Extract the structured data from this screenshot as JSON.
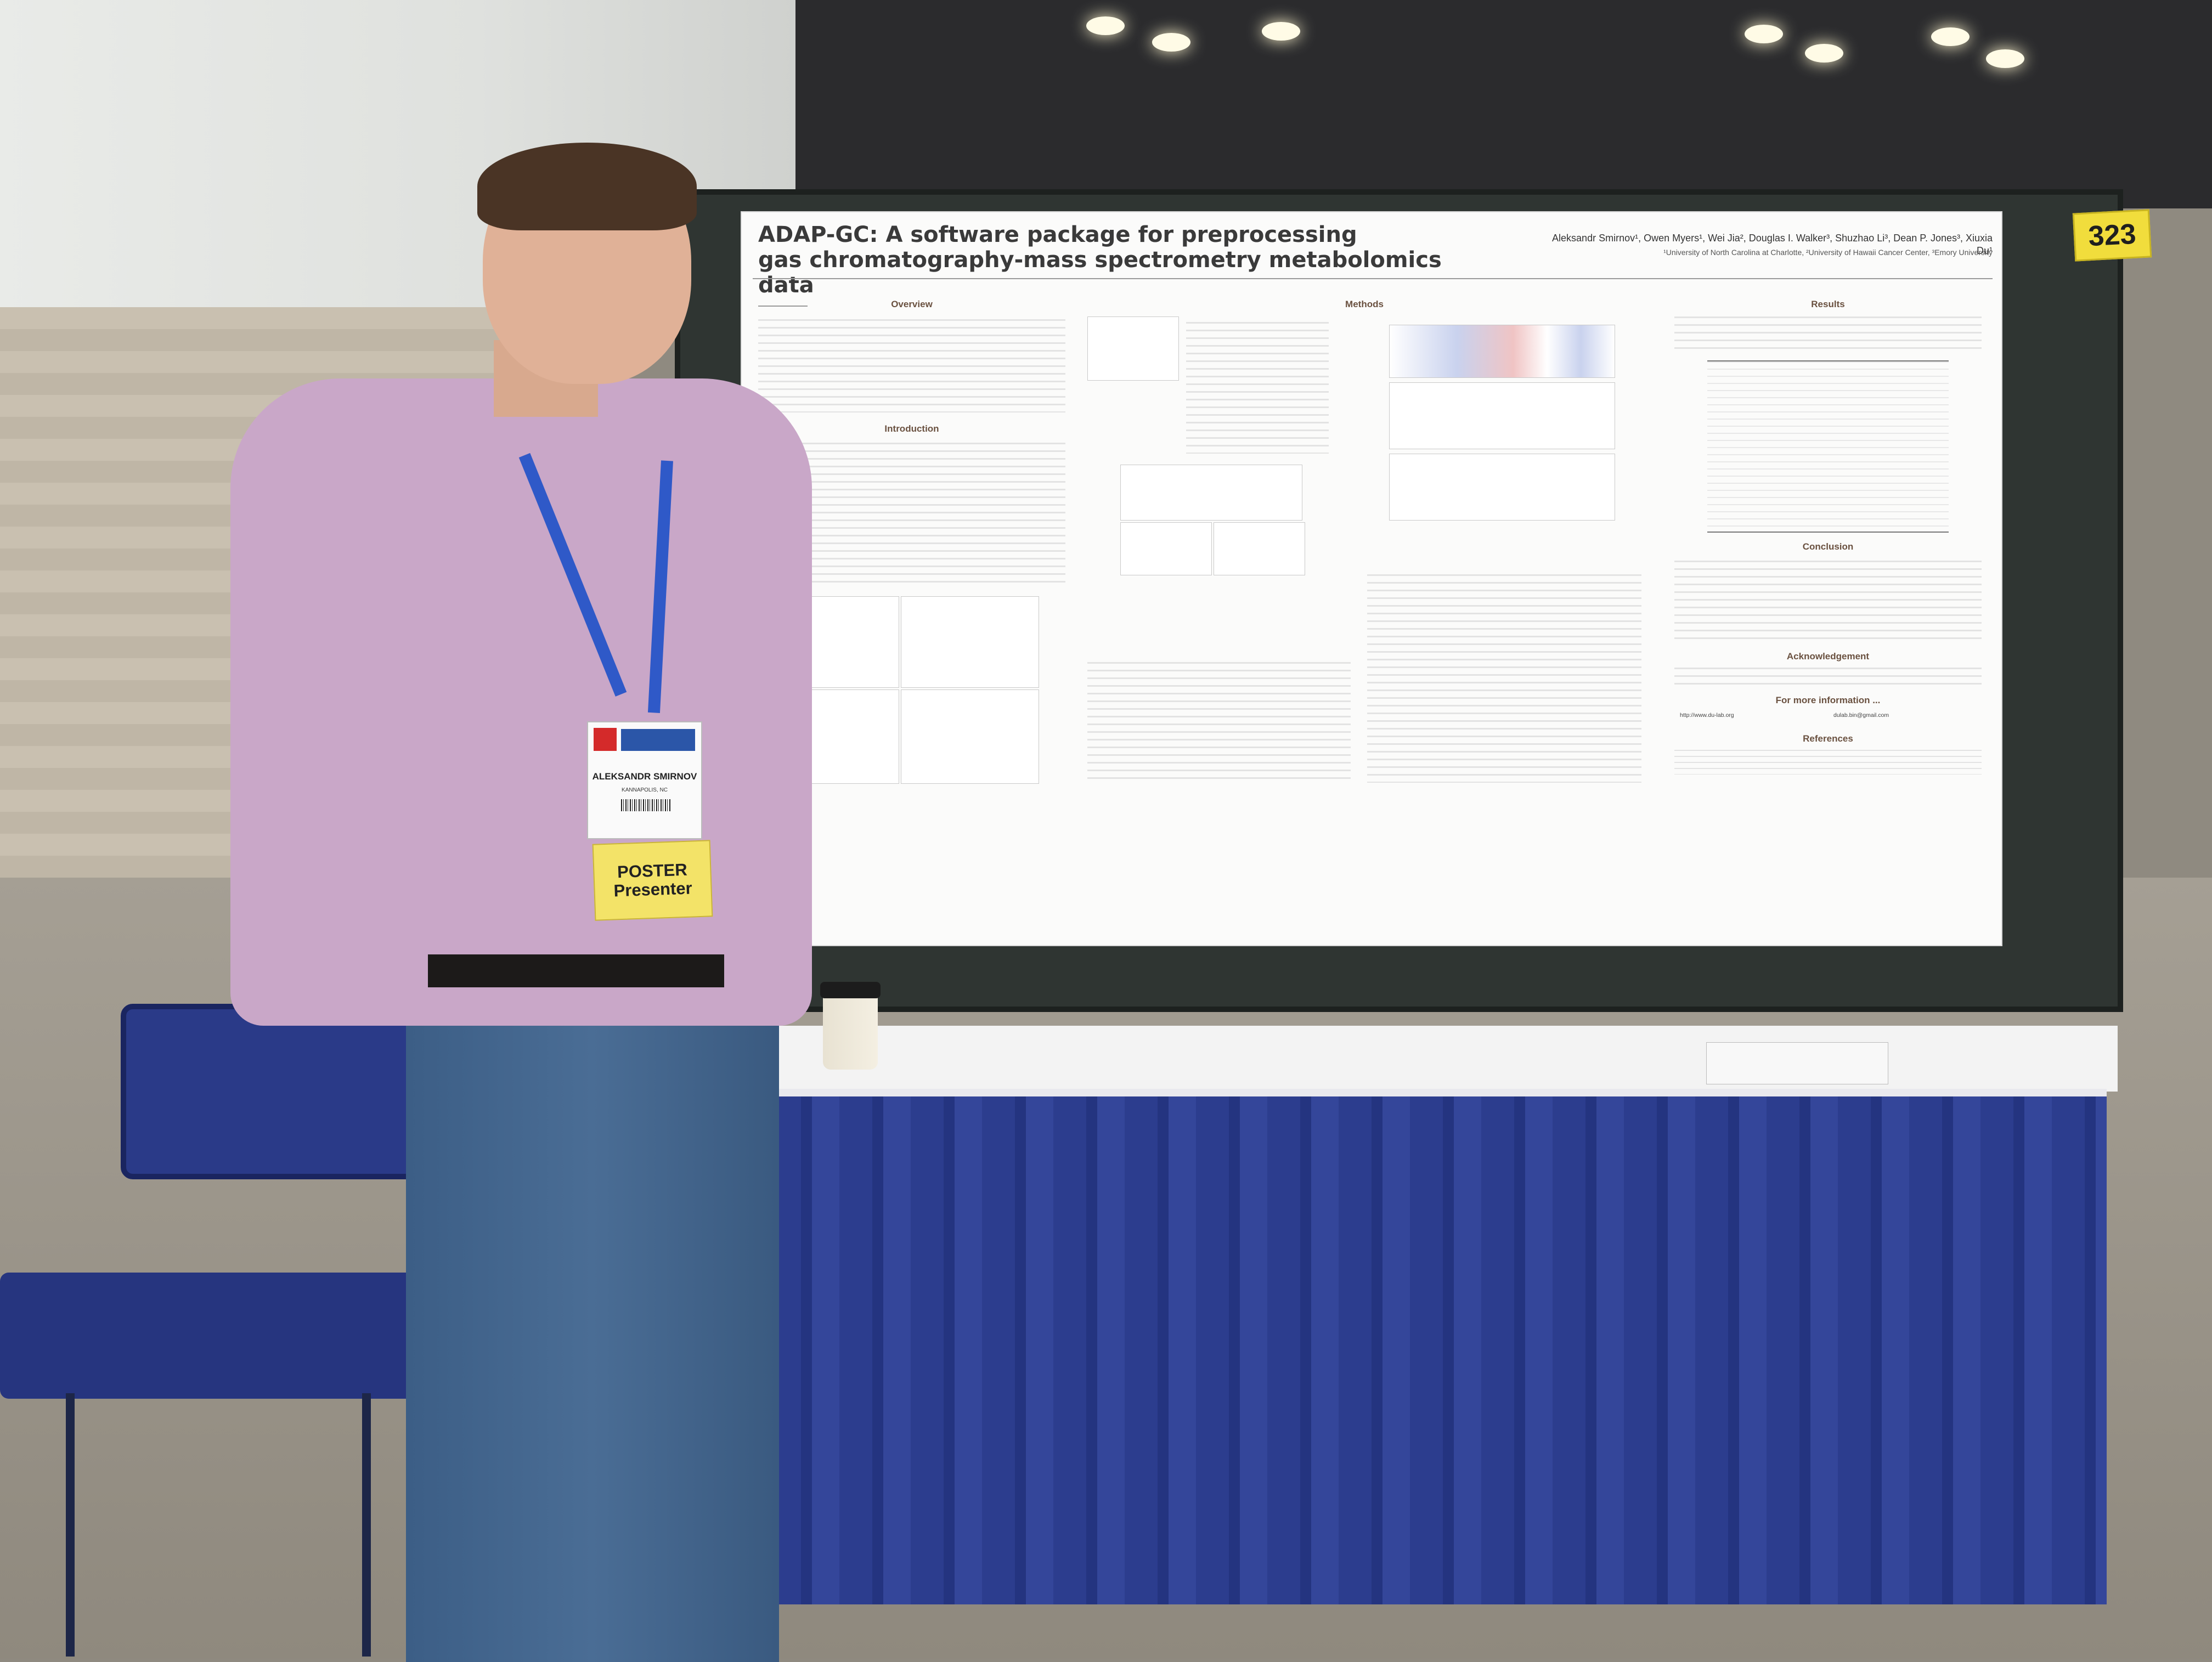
{
  "poster": {
    "booth_number": "323",
    "title_line1": "ADAP-GC: A software package for preprocessing",
    "title_line2": "gas chromatography-mass spectrometry metabolomics data",
    "authors": "Aleksandr Smirnov¹, Owen Myers¹, Wei Jia², Douglas I. Walker³, Shuzhao Li³, Dean P. Jones³, Xiuxia Du¹",
    "affiliations": "¹University of North Carolina at Charlotte, ²University of Hawaii Cancer Center, ³Emory University",
    "sections": {
      "overview": "Overview",
      "introduction": "Introduction",
      "methods": "Methods",
      "results": "Results",
      "conclusion": "Conclusion",
      "acknowledgement": "Acknowledgement",
      "more_info": "For more information ...",
      "references": "References"
    },
    "website": "http://www.du-lab.org",
    "email": "dulab.bin@gmail.com"
  },
  "badge": {
    "name": "ALEKSANDR SMIRNOV",
    "city": "KANNAPOLIS, NC",
    "ribbon_line1": "POSTER",
    "ribbon_line2": "Presenter"
  },
  "colors": {
    "skirt": "#2c3d8e",
    "board": "#2f3532",
    "badge_ribbon": "#f3e368",
    "shirt": "#c9a7c8"
  }
}
